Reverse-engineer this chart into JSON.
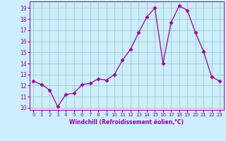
{
  "x": [
    0,
    1,
    2,
    3,
    4,
    5,
    6,
    7,
    8,
    9,
    10,
    11,
    12,
    13,
    14,
    15,
    16,
    17,
    18,
    19,
    20,
    21,
    22,
    23
  ],
  "y": [
    12.4,
    12.1,
    11.6,
    10.1,
    11.2,
    11.3,
    12.1,
    12.2,
    12.6,
    12.5,
    13.0,
    14.3,
    15.3,
    16.8,
    18.2,
    19.0,
    14.0,
    17.7,
    19.2,
    18.8,
    16.8,
    15.1,
    12.8,
    12.4
  ],
  "line_color": "#990099",
  "marker": "D",
  "marker_size": 2.5,
  "bg_color": "#cceeff",
  "grid_color": "#aacccc",
  "xlabel": "Windchill (Refroidissement éolien,°C)",
  "xlabel_color": "#990099",
  "tick_color": "#990099",
  "ylim": [
    9.8,
    19.6
  ],
  "xlim": [
    -0.5,
    23.5
  ],
  "yticks": [
    10,
    11,
    12,
    13,
    14,
    15,
    16,
    17,
    18,
    19
  ],
  "xticks": [
    0,
    1,
    2,
    3,
    4,
    5,
    6,
    7,
    8,
    9,
    10,
    11,
    12,
    13,
    14,
    15,
    16,
    17,
    18,
    19,
    20,
    21,
    22,
    23
  ],
  "xtick_labels": [
    "0",
    "1",
    "2",
    "3",
    "4",
    "5",
    "6",
    "7",
    "8",
    "9",
    "10",
    "11",
    "12",
    "13",
    "14",
    "15",
    "16",
    "17",
    "18",
    "19",
    "20",
    "21",
    "22",
    "23"
  ]
}
